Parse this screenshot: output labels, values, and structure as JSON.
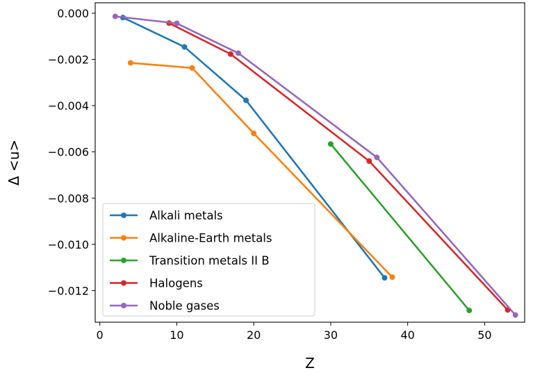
{
  "chart_data": {
    "type": "line",
    "xlabel": "Z",
    "ylabel": "Δ <u>",
    "xlim": [
      -0.6,
      55.2
    ],
    "ylim": [
      -0.01337,
      0.00045
    ],
    "xticks": [
      0,
      10,
      20,
      30,
      40,
      50
    ],
    "xtick_labels": [
      "0",
      "10",
      "20",
      "30",
      "40",
      "50"
    ],
    "yticks": [
      0,
      -0.002,
      -0.004,
      -0.006,
      -0.008,
      -0.01,
      -0.012
    ],
    "ytick_labels": [
      "0.000",
      "−0.002",
      "−0.004",
      "−0.006",
      "−0.008",
      "−0.010",
      "−0.012"
    ],
    "grid": false,
    "legend_position": "lower-left",
    "series": [
      {
        "name": "Alkali metals",
        "color": "#1f77b4",
        "x": [
          3,
          11,
          19,
          37
        ],
        "y": [
          -0.00019,
          -0.00146,
          -0.00377,
          -0.01145
        ]
      },
      {
        "name": "Alkaline-Earth metals",
        "color": "#ff7f0e",
        "x": [
          4,
          12,
          20,
          38
        ],
        "y": [
          -0.00215,
          -0.00237,
          -0.0052,
          -0.01142
        ]
      },
      {
        "name": "Transition metals II B",
        "color": "#2ca02c",
        "x": [
          30,
          48
        ],
        "y": [
          -0.00566,
          -0.01286
        ]
      },
      {
        "name": "Halogens",
        "color": "#d62728",
        "x": [
          9,
          17,
          35,
          53
        ],
        "y": [
          -0.00043,
          -0.00177,
          -0.0064,
          -0.01284
        ]
      },
      {
        "name": "Noble gases",
        "color": "#9467bd",
        "x": [
          2,
          10,
          18,
          36,
          54
        ],
        "y": [
          -0.00014,
          -0.00044,
          -0.00173,
          -0.00624,
          -0.01306
        ]
      }
    ]
  }
}
